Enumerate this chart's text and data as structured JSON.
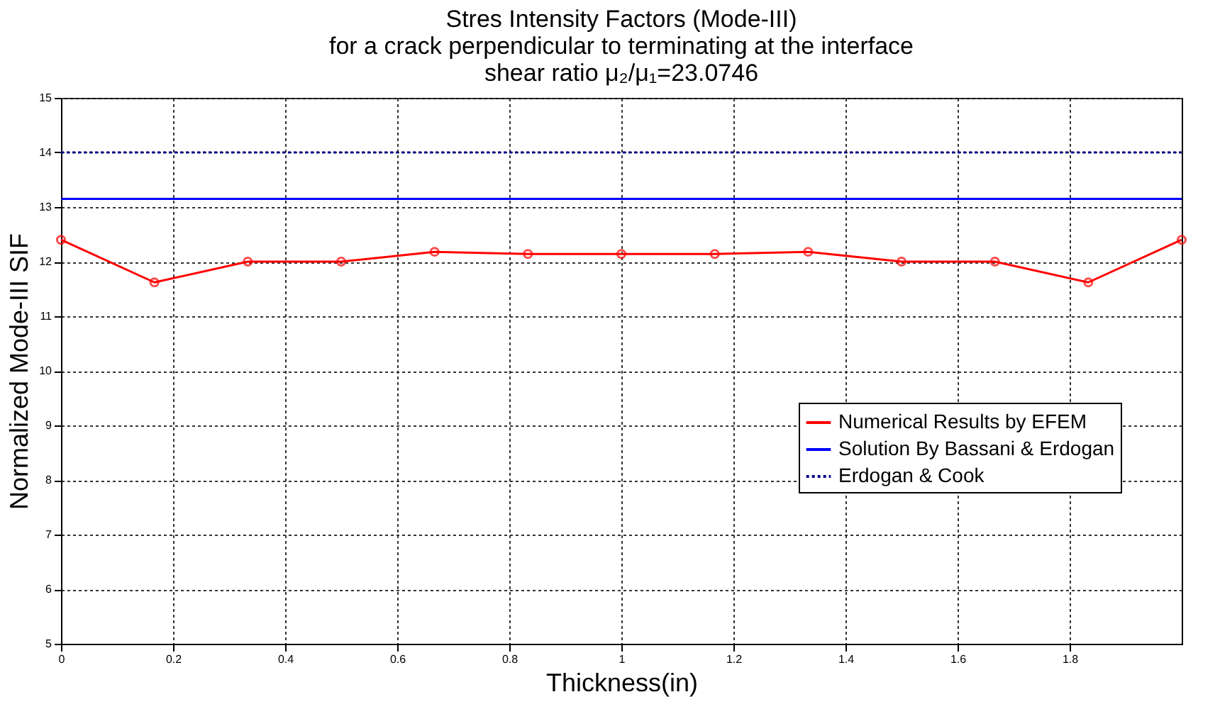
{
  "chart_data": {
    "type": "line",
    "title": "Stres Intensity Factors (Mode-III)\nfor a crack perpendicular to terminating at the interface\nshear ratio μ₂/μ₁=23.0746",
    "xlabel": "Thickness(in)",
    "ylabel": "Normalized Mode-III SIF",
    "series": [
      {
        "name": "Numerical Results by EFEM",
        "color": "#ff0000",
        "marker": "circle",
        "line_style": "solid",
        "x": [
          0,
          0.1667,
          0.3333,
          0.5,
          0.6667,
          0.8333,
          1,
          1.1667,
          1.3333,
          1.5,
          1.6667,
          1.8333,
          2
        ],
        "values": [
          12.4,
          11.62,
          12.0,
          12.0,
          12.18,
          12.14,
          12.14,
          12.14,
          12.18,
          12.0,
          12.0,
          11.62,
          12.4
        ]
      },
      {
        "name": "Solution By Bassani & Erdogan",
        "color": "#0000ff",
        "marker": "none",
        "line_style": "solid",
        "x": [
          0,
          2
        ],
        "values": [
          13.15,
          13.15
        ]
      },
      {
        "name": "Erdogan & Cook",
        "color": "#00008b",
        "marker": "none",
        "line_style": "dotted",
        "x": [
          0,
          2
        ],
        "values": [
          14.0,
          14.0
        ]
      }
    ],
    "xlim": [
      0,
      2
    ],
    "xticks": [
      0,
      0.2,
      0.4,
      0.6,
      0.8,
      1,
      1.2,
      1.4,
      1.6,
      1.8
    ],
    "ylim": [
      5,
      15
    ],
    "yticks": [
      5,
      6,
      7,
      8,
      9,
      10,
      11,
      12,
      13,
      14,
      15
    ],
    "grid": true,
    "legend": "right"
  }
}
